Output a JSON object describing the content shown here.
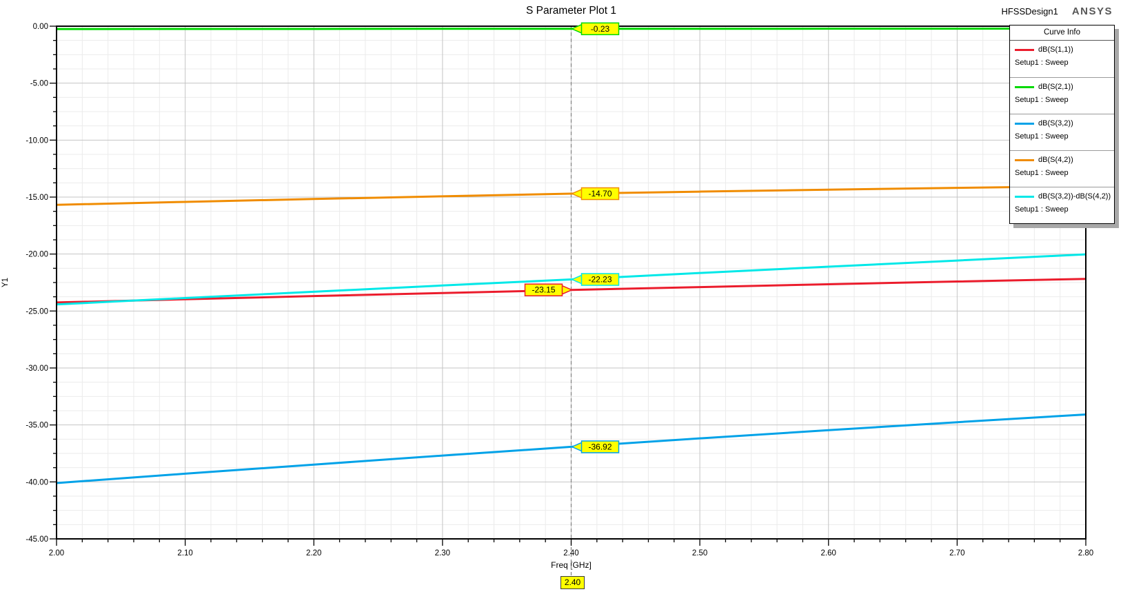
{
  "title": "S Parameter Plot 1",
  "branding": {
    "design_name": "HFSSDesign1",
    "logo_text": "ANSYS"
  },
  "legend": {
    "title": "Curve Info"
  },
  "marker": {
    "freq": 2.4,
    "freq_label": "2.40"
  },
  "colors": {
    "marker_fill": "#ffff00",
    "marker_line": "#808080",
    "grid_minor": "#ebebeb",
    "grid_major": "#c4c4c4",
    "axis": "#000000",
    "legend_shadow": "#a8a8a8"
  },
  "chart_data": {
    "type": "line",
    "title": "S Parameter Plot 1",
    "xlabel": "Freq [GHz]",
    "ylabel": "Y1",
    "xlim": [
      2.0,
      2.8
    ],
    "ylim": [
      -45.0,
      0.0
    ],
    "x_major_step": 0.1,
    "x_minor_divisions": 5,
    "y_major_step": 5.0,
    "y_minor_divisions": 4,
    "grid": true,
    "legend_position": "top-right",
    "x_tick_labels": [
      "2.00",
      "2.10",
      "2.20",
      "2.30",
      "2.40",
      "2.50",
      "2.60",
      "2.70",
      "2.80"
    ],
    "y_tick_labels": [
      "0.00",
      "-5.00",
      "-10.00",
      "-15.00",
      "-20.00",
      "-25.00",
      "-30.00",
      "-35.00",
      "-40.00",
      "-45.00"
    ],
    "x": [
      2.0,
      2.1,
      2.2,
      2.3,
      2.4,
      2.5,
      2.6,
      2.7,
      2.8
    ],
    "series": [
      {
        "name": "dB(S(1,1))",
        "setup": "Setup1 : Sweep",
        "color": "#eb1c2c",
        "values": [
          -24.25,
          -23.97,
          -23.69,
          -23.42,
          -23.15,
          -22.9,
          -22.65,
          -22.41,
          -22.18
        ],
        "marker_value": -23.15,
        "marker_label": "-23.15",
        "marker_side": "left"
      },
      {
        "name": "dB(S(2,1))",
        "setup": "Setup1 : Sweep",
        "color": "#00d900",
        "values": [
          -0.25,
          -0.24,
          -0.24,
          -0.23,
          -0.23,
          -0.23,
          -0.22,
          -0.22,
          -0.21
        ],
        "marker_value": -0.23,
        "marker_label": "-0.23",
        "marker_side": "right"
      },
      {
        "name": "dB(S(3,2))",
        "setup": "Setup1 : Sweep",
        "color": "#00a2e8",
        "values": [
          -40.1,
          -39.28,
          -38.48,
          -37.69,
          -36.92,
          -36.18,
          -35.46,
          -34.76,
          -34.08
        ],
        "marker_value": -36.92,
        "marker_label": "-36.92",
        "marker_side": "right"
      },
      {
        "name": "dB(S(4,2))",
        "setup": "Setup1 : Sweep",
        "color": "#f08c00",
        "values": [
          -15.68,
          -15.42,
          -15.17,
          -14.93,
          -14.7,
          -14.52,
          -14.35,
          -14.19,
          -14.05
        ],
        "marker_value": -14.7,
        "marker_label": "-14.70",
        "marker_side": "right"
      },
      {
        "name": "dB(S(3,2))-dB(S(4,2))",
        "setup": "Setup1 : Sweep",
        "color": "#00e8e8",
        "values": [
          -24.42,
          -23.86,
          -23.31,
          -22.76,
          -22.23,
          -21.66,
          -21.11,
          -20.57,
          -20.03
        ],
        "marker_value": -22.23,
        "marker_label": "-22.23",
        "marker_side": "right"
      }
    ]
  }
}
